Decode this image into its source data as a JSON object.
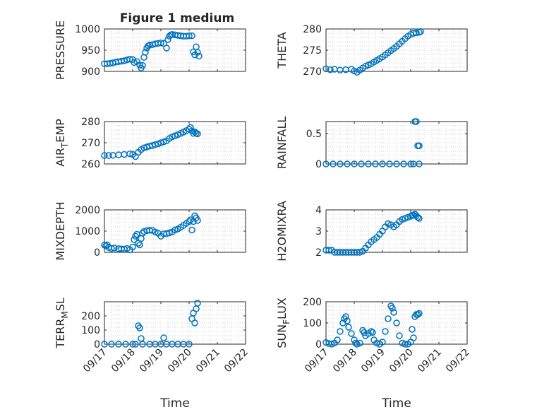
{
  "figure": {
    "title": "Figure 1 medium",
    "x_axis_title": "Time",
    "marker_color": "#0072bd",
    "date_ticks": [
      "09/17",
      "09/18",
      "09/19",
      "09/20",
      "09/21",
      "09/22"
    ]
  },
  "chart_data": [
    {
      "type": "scatter",
      "ylabel": "PRESSURE",
      "ylim": [
        900,
        1000
      ],
      "yticks": [
        900,
        950,
        1000
      ],
      "xlim": [
        "09/17",
        "09/22"
      ],
      "grid": true,
      "points": [
        [
          0.0,
          918
        ],
        [
          0.1,
          918
        ],
        [
          0.2,
          919
        ],
        [
          0.3,
          920
        ],
        [
          0.4,
          922
        ],
        [
          0.5,
          923
        ],
        [
          0.6,
          924
        ],
        [
          0.7,
          925
        ],
        [
          0.8,
          927
        ],
        [
          0.9,
          929
        ],
        [
          1.0,
          928
        ],
        [
          1.05,
          921
        ],
        [
          1.15,
          923
        ],
        [
          1.25,
          915
        ],
        [
          1.3,
          908
        ],
        [
          1.35,
          914
        ],
        [
          1.4,
          933
        ],
        [
          1.45,
          945
        ],
        [
          1.5,
          955
        ],
        [
          1.55,
          960
        ],
        [
          1.6,
          962
        ],
        [
          1.7,
          963
        ],
        [
          1.8,
          965
        ],
        [
          1.9,
          966
        ],
        [
          2.0,
          967
        ],
        [
          2.1,
          966
        ],
        [
          2.2,
          955
        ],
        [
          2.25,
          975
        ],
        [
          2.3,
          983
        ],
        [
          2.35,
          986
        ],
        [
          2.4,
          987
        ],
        [
          2.5,
          986
        ],
        [
          2.6,
          985
        ],
        [
          2.7,
          984
        ],
        [
          2.8,
          983
        ],
        [
          2.9,
          983
        ],
        [
          3.0,
          984
        ],
        [
          3.1,
          984
        ],
        [
          3.15,
          946
        ],
        [
          3.2,
          939
        ],
        [
          3.25,
          958
        ],
        [
          3.3,
          945
        ],
        [
          3.35,
          936
        ]
      ]
    },
    {
      "type": "scatter",
      "ylabel": "THETA",
      "ylim": [
        270,
        280
      ],
      "yticks": [
        270,
        275,
        280
      ],
      "xlim": [
        "09/17",
        "09/22"
      ],
      "grid": true,
      "points": [
        [
          0.0,
          270.6
        ],
        [
          0.15,
          270.4
        ],
        [
          0.3,
          270.5
        ],
        [
          0.5,
          270.3
        ],
        [
          0.7,
          270.4
        ],
        [
          0.9,
          270.5
        ],
        [
          1.0,
          270.1
        ],
        [
          1.1,
          269.8
        ],
        [
          1.2,
          270.3
        ],
        [
          1.3,
          270.8
        ],
        [
          1.4,
          271.2
        ],
        [
          1.5,
          271.5
        ],
        [
          1.6,
          271.8
        ],
        [
          1.7,
          272.2
        ],
        [
          1.8,
          272.6
        ],
        [
          1.9,
          273.0
        ],
        [
          2.0,
          273.4
        ],
        [
          2.1,
          273.9
        ],
        [
          2.2,
          274.4
        ],
        [
          2.3,
          274.9
        ],
        [
          2.4,
          275.4
        ],
        [
          2.5,
          275.9
        ],
        [
          2.6,
          276.5
        ],
        [
          2.7,
          277.1
        ],
        [
          2.8,
          277.7
        ],
        [
          2.9,
          278.3
        ],
        [
          3.0,
          278.7
        ],
        [
          3.1,
          279.0
        ],
        [
          3.2,
          279.1
        ],
        [
          3.3,
          279.2
        ],
        [
          3.35,
          279.4
        ]
      ]
    },
    {
      "type": "scatter",
      "ylabel": "AIR_TEMP",
      "ylim": [
        260,
        280
      ],
      "yticks": [
        260,
        270,
        280
      ],
      "xlim": [
        "09/17",
        "09/22"
      ],
      "grid": true,
      "points": [
        [
          0.0,
          264.0
        ],
        [
          0.15,
          264.0
        ],
        [
          0.3,
          264.1
        ],
        [
          0.5,
          264.3
        ],
        [
          0.7,
          264.5
        ],
        [
          0.9,
          264.8
        ],
        [
          1.0,
          264.5
        ],
        [
          1.1,
          263.5
        ],
        [
          1.2,
          265.5
        ],
        [
          1.3,
          266.8
        ],
        [
          1.4,
          267.6
        ],
        [
          1.5,
          268.0
        ],
        [
          1.6,
          268.4
        ],
        [
          1.7,
          268.7
        ],
        [
          1.8,
          269.1
        ],
        [
          1.9,
          269.5
        ],
        [
          2.0,
          270.0
        ],
        [
          2.1,
          270.4
        ],
        [
          2.2,
          270.9
        ],
        [
          2.3,
          272.0
        ],
        [
          2.4,
          272.8
        ],
        [
          2.5,
          273.3
        ],
        [
          2.6,
          273.8
        ],
        [
          2.7,
          274.4
        ],
        [
          2.8,
          275.0
        ],
        [
          2.9,
          275.7
        ],
        [
          3.0,
          276.4
        ],
        [
          3.05,
          277.2
        ],
        [
          3.1,
          275.6
        ],
        [
          3.15,
          274.4
        ],
        [
          3.2,
          275.1
        ],
        [
          3.25,
          274.5
        ],
        [
          3.3,
          274.2
        ]
      ]
    },
    {
      "type": "scatter",
      "ylabel": "RAINFALL",
      "ylim": [
        0,
        0.7
      ],
      "yticks": [
        0,
        0.5
      ],
      "xlim": [
        "09/17",
        "09/22"
      ],
      "grid": true,
      "points": [
        [
          0.0,
          0
        ],
        [
          0.25,
          0
        ],
        [
          0.5,
          0
        ],
        [
          0.75,
          0
        ],
        [
          1.0,
          0
        ],
        [
          1.25,
          0
        ],
        [
          1.5,
          0
        ],
        [
          1.75,
          0
        ],
        [
          2.0,
          0
        ],
        [
          2.25,
          0
        ],
        [
          2.5,
          0
        ],
        [
          2.75,
          0
        ],
        [
          3.0,
          0
        ],
        [
          3.1,
          0
        ],
        [
          3.15,
          0.7
        ],
        [
          3.2,
          0.7
        ],
        [
          3.25,
          0.3
        ],
        [
          3.3,
          0.3
        ],
        [
          3.3,
          0
        ]
      ]
    },
    {
      "type": "scatter",
      "ylabel": "MIXDEPTH",
      "ylim": [
        0,
        2000
      ],
      "yticks": [
        0,
        1000,
        2000
      ],
      "xlim": [
        "09/17",
        "09/22"
      ],
      "grid": true,
      "points": [
        [
          0.0,
          340
        ],
        [
          0.05,
          300
        ],
        [
          0.1,
          350
        ],
        [
          0.15,
          230
        ],
        [
          0.25,
          180
        ],
        [
          0.35,
          200
        ],
        [
          0.5,
          170
        ],
        [
          0.6,
          160
        ],
        [
          0.7,
          150
        ],
        [
          0.8,
          180
        ],
        [
          0.9,
          120
        ],
        [
          1.0,
          250
        ],
        [
          1.05,
          600
        ],
        [
          1.1,
          760
        ],
        [
          1.15,
          850
        ],
        [
          1.2,
          430
        ],
        [
          1.25,
          350
        ],
        [
          1.3,
          650
        ],
        [
          1.35,
          900
        ],
        [
          1.4,
          980
        ],
        [
          1.5,
          1020
        ],
        [
          1.6,
          1040
        ],
        [
          1.7,
          1030
        ],
        [
          1.8,
          960
        ],
        [
          1.9,
          900
        ],
        [
          2.0,
          760
        ],
        [
          2.1,
          870
        ],
        [
          2.2,
          880
        ],
        [
          2.3,
          920
        ],
        [
          2.4,
          960
        ],
        [
          2.5,
          1050
        ],
        [
          2.6,
          1100
        ],
        [
          2.7,
          1180
        ],
        [
          2.8,
          1270
        ],
        [
          2.9,
          1360
        ],
        [
          3.0,
          1450
        ],
        [
          3.05,
          1530
        ],
        [
          3.1,
          1050
        ],
        [
          3.15,
          1450
        ],
        [
          3.2,
          1720
        ],
        [
          3.25,
          1620
        ],
        [
          3.3,
          1500
        ]
      ]
    },
    {
      "type": "scatter",
      "ylabel": "H2OMIXRA",
      "ylim": [
        2,
        4
      ],
      "yticks": [
        2,
        3,
        4
      ],
      "xlim": [
        "09/17",
        "09/22"
      ],
      "grid": true,
      "points": [
        [
          0.0,
          2.1
        ],
        [
          0.1,
          2.1
        ],
        [
          0.2,
          2.1
        ],
        [
          0.3,
          2.0
        ],
        [
          0.4,
          2.0
        ],
        [
          0.5,
          2.0
        ],
        [
          0.6,
          2.0
        ],
        [
          0.7,
          2.0
        ],
        [
          0.8,
          2.0
        ],
        [
          0.9,
          2.0
        ],
        [
          1.0,
          2.0
        ],
        [
          1.1,
          2.0
        ],
        [
          1.2,
          2.0
        ],
        [
          1.3,
          2.05
        ],
        [
          1.4,
          2.2
        ],
        [
          1.5,
          2.35
        ],
        [
          1.6,
          2.5
        ],
        [
          1.7,
          2.6
        ],
        [
          1.8,
          2.7
        ],
        [
          1.9,
          2.85
        ],
        [
          2.0,
          3.0
        ],
        [
          2.1,
          3.2
        ],
        [
          2.2,
          3.35
        ],
        [
          2.3,
          3.3
        ],
        [
          2.4,
          3.2
        ],
        [
          2.5,
          3.3
        ],
        [
          2.6,
          3.45
        ],
        [
          2.7,
          3.55
        ],
        [
          2.8,
          3.6
        ],
        [
          2.9,
          3.65
        ],
        [
          3.0,
          3.7
        ],
        [
          3.05,
          3.75
        ],
        [
          3.1,
          3.75
        ],
        [
          3.15,
          3.8
        ],
        [
          3.2,
          3.72
        ],
        [
          3.25,
          3.65
        ],
        [
          3.3,
          3.6
        ]
      ]
    },
    {
      "type": "scatter",
      "ylabel": "TERR_MSL",
      "ylim": [
        0,
        300
      ],
      "yticks": [
        0,
        100,
        200
      ],
      "xlim": [
        "09/17",
        "09/22"
      ],
      "grid": true,
      "points": [
        [
          0.0,
          0
        ],
        [
          0.25,
          0
        ],
        [
          0.5,
          0
        ],
        [
          0.75,
          0
        ],
        [
          1.0,
          0
        ],
        [
          1.1,
          0
        ],
        [
          1.2,
          130
        ],
        [
          1.25,
          115
        ],
        [
          1.3,
          40
        ],
        [
          1.35,
          0
        ],
        [
          1.6,
          0
        ],
        [
          1.8,
          0
        ],
        [
          2.0,
          0
        ],
        [
          2.1,
          45
        ],
        [
          2.2,
          0
        ],
        [
          2.4,
          0
        ],
        [
          2.6,
          0
        ],
        [
          2.8,
          0
        ],
        [
          3.0,
          0
        ],
        [
          3.1,
          180
        ],
        [
          3.15,
          220
        ],
        [
          3.2,
          150
        ],
        [
          3.25,
          250
        ],
        [
          3.3,
          290
        ]
      ]
    },
    {
      "type": "scatter",
      "ylabel": "SUN_FLUX",
      "ylim": [
        0,
        200
      ],
      "yticks": [
        0,
        100,
        200
      ],
      "xlim": [
        "09/17",
        "09/22"
      ],
      "grid": true,
      "points": [
        [
          0.0,
          8
        ],
        [
          0.1,
          3
        ],
        [
          0.2,
          0
        ],
        [
          0.3,
          5
        ],
        [
          0.4,
          20
        ],
        [
          0.5,
          60
        ],
        [
          0.6,
          100
        ],
        [
          0.65,
          120
        ],
        [
          0.7,
          130
        ],
        [
          0.75,
          110
        ],
        [
          0.8,
          80
        ],
        [
          0.9,
          50
        ],
        [
          1.0,
          20
        ],
        [
          1.05,
          5
        ],
        [
          1.1,
          0
        ],
        [
          1.2,
          5
        ],
        [
          1.3,
          65
        ],
        [
          1.35,
          55
        ],
        [
          1.4,
          40
        ],
        [
          1.5,
          50
        ],
        [
          1.6,
          60
        ],
        [
          1.65,
          55
        ],
        [
          1.7,
          20
        ],
        [
          1.8,
          5
        ],
        [
          1.9,
          0
        ],
        [
          2.0,
          10
        ],
        [
          2.1,
          60
        ],
        [
          2.2,
          120
        ],
        [
          2.3,
          180
        ],
        [
          2.35,
          170
        ],
        [
          2.4,
          150
        ],
        [
          2.5,
          100
        ],
        [
          2.6,
          40
        ],
        [
          2.7,
          5
        ],
        [
          2.8,
          0
        ],
        [
          2.9,
          0
        ],
        [
          3.0,
          10
        ],
        [
          3.05,
          70
        ],
        [
          3.1,
          30
        ],
        [
          3.15,
          130
        ],
        [
          3.2,
          140
        ],
        [
          3.25,
          140
        ],
        [
          3.3,
          145
        ]
      ]
    }
  ]
}
